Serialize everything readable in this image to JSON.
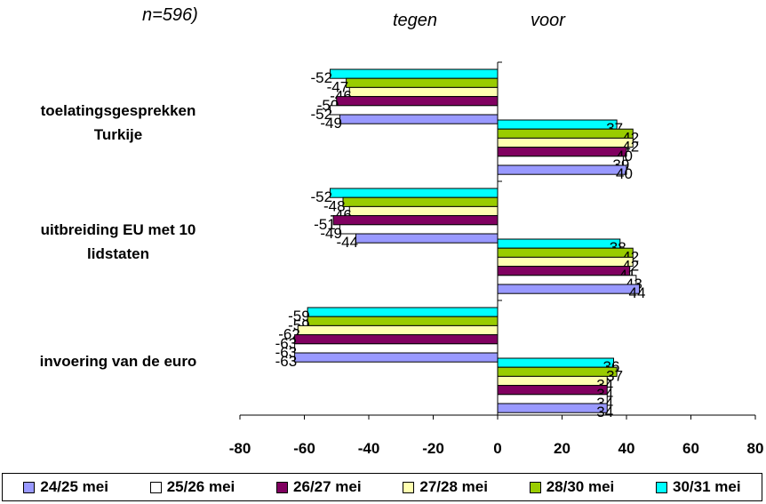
{
  "header": {
    "partial_title": "n=596)",
    "tegen_label": "tegen",
    "voor_label": "voor"
  },
  "chart_data": {
    "type": "bar",
    "orientation": "horizontal",
    "categories": [
      "toelatingsgesprekken Turkije",
      "uitbreiding EU met 10 lidstaten",
      "invoering van de euro"
    ],
    "groups": [
      "voor",
      "tegen"
    ],
    "xlim": [
      -80,
      80
    ],
    "xticks": [
      "-80",
      "-60",
      "-40",
      "-20",
      "0",
      "20",
      "40",
      "60",
      "80"
    ],
    "legend_position": "bottom",
    "series": [
      {
        "name": "24/25 mei",
        "color": "#9999ff",
        "tegen": [
          -49,
          -44,
          -63
        ],
        "voor": [
          40,
          44,
          34
        ]
      },
      {
        "name": "25/26 mei",
        "color": "#ffffff",
        "tegen": [
          -52,
          -49,
          -63
        ],
        "voor": [
          39,
          43,
          34
        ]
      },
      {
        "name": "26/27 mei",
        "color": "#800060",
        "tegen": [
          -50,
          -51,
          -63
        ],
        "voor": [
          40,
          41,
          34
        ]
      },
      {
        "name": "27/28 mei",
        "color": "#ffffb0",
        "tegen": [
          -46,
          -46,
          -62
        ],
        "voor": [
          42,
          42,
          34
        ]
      },
      {
        "name": "28/30 mei",
        "color": "#99cc00",
        "tegen": [
          -47,
          -48,
          -59
        ],
        "voor": [
          42,
          42,
          37
        ]
      },
      {
        "name": "30/31 mei",
        "color": "#00ffff",
        "tegen": [
          -52,
          -52,
          -59
        ],
        "voor": [
          37,
          38,
          36
        ]
      }
    ]
  }
}
